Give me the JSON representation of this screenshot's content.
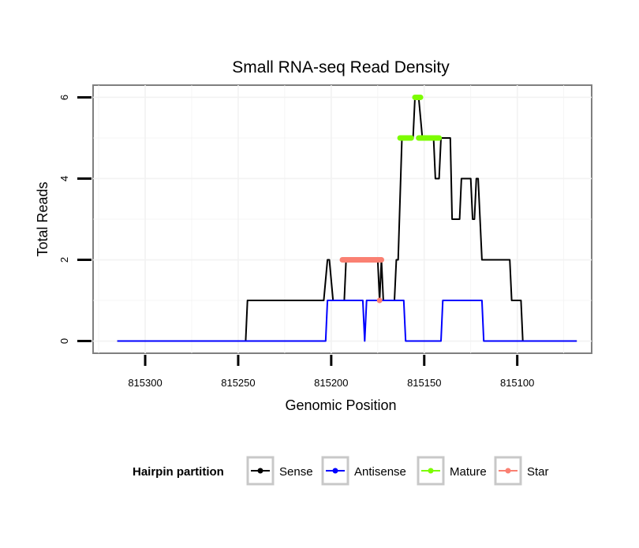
{
  "chart_data": {
    "type": "line",
    "title": "Small RNA-seq Read Density",
    "xlabel": "Genomic Position",
    "ylabel": "Total Reads",
    "x_reversed": true,
    "xlim": [
      815328,
      815060
    ],
    "ylim": [
      -0.3,
      6.3
    ],
    "x_ticks": [
      815300,
      815250,
      815200,
      815150,
      815100
    ],
    "x_tick_labels": [
      "815300",
      "815250",
      "815200",
      "815150",
      "815100"
    ],
    "y_ticks": [
      0,
      2,
      4,
      6
    ],
    "y_tick_labels": [
      "0",
      "2",
      "4",
      "6"
    ],
    "grid": true,
    "legend": {
      "title": "Hairpin partition",
      "position": "bottom",
      "entries": [
        "Sense",
        "Antisense",
        "Mature",
        "Star"
      ]
    },
    "colors": {
      "Sense": "#000000",
      "Antisense": "#0000ff",
      "Mature": "#7cfc00",
      "Star": "#fa8072"
    },
    "series": [
      {
        "name": "Sense",
        "x": [
          815315,
          815246,
          815245,
          815204,
          815202,
          815201,
          815199,
          815193,
          815192,
          815175,
          815174,
          815173,
          815172,
          815166,
          815165,
          815164,
          815162,
          815156,
          815155,
          815153,
          815151,
          815145,
          815144,
          815142,
          815141,
          815136,
          815135,
          815131,
          815130,
          815125,
          815124,
          815123,
          815122,
          815121,
          815120,
          815119,
          815104,
          815103,
          815098,
          815097,
          815068
        ],
        "y": [
          0,
          0,
          1,
          1,
          2,
          2,
          1,
          1,
          2,
          2,
          1,
          2,
          1,
          1,
          2,
          2,
          5,
          5,
          6,
          6,
          5,
          5,
          4,
          4,
          5,
          5,
          3,
          3,
          4,
          4,
          3,
          3,
          4,
          4,
          3,
          2,
          2,
          1,
          1,
          0,
          0
        ]
      },
      {
        "name": "Antisense",
        "x": [
          815315,
          815203,
          815202,
          815183,
          815182,
          815181,
          815161,
          815160,
          815141,
          815140,
          815139,
          815119,
          815118,
          815068
        ],
        "y": [
          0,
          0,
          1,
          1,
          0,
          1,
          1,
          0,
          0,
          1,
          1,
          1,
          0,
          0
        ]
      },
      {
        "name": "Mature",
        "segments": [
          {
            "x": [
              815163,
              815157
            ],
            "y": [
              5,
              5
            ]
          },
          {
            "x": [
              815155,
              815152
            ],
            "y": [
              6,
              6
            ]
          },
          {
            "x": [
              815153,
              815142
            ],
            "y": [
              5,
              5
            ]
          }
        ]
      },
      {
        "name": "Star",
        "segments": [
          {
            "x": [
              815194,
              815173
            ],
            "y": [
              2,
              2
            ]
          },
          {
            "x": [
              815174,
              815174
            ],
            "y": [
              1,
              1
            ]
          }
        ]
      }
    ]
  }
}
